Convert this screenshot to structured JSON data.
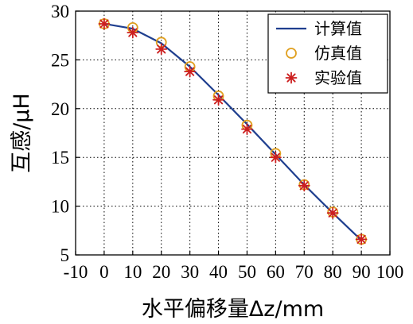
{
  "chart_data": {
    "type": "line",
    "xlabel": "水平偏移量Δz/mm",
    "ylabel": "互感/μH",
    "xlim": [
      -10,
      100
    ],
    "ylim": [
      5,
      30
    ],
    "xticks": [
      -10,
      0,
      10,
      20,
      30,
      40,
      50,
      60,
      70,
      80,
      90,
      100
    ],
    "yticks": [
      5,
      10,
      15,
      20,
      25,
      30
    ],
    "grid": "dotted",
    "legend_position": "top-right",
    "series": [
      {
        "name": "计算值",
        "style": "line",
        "color": "#1f3f8f",
        "x": [
          0,
          10,
          20,
          30,
          40,
          50,
          60,
          70,
          80,
          90
        ],
        "y": [
          28.7,
          28.2,
          26.7,
          24.3,
          21.4,
          18.4,
          15.3,
          12.2,
          9.3,
          6.5
        ]
      },
      {
        "name": "仿真值",
        "style": "circle-marker",
        "color": "#e0a020",
        "x": [
          0,
          10,
          20,
          30,
          40,
          50,
          60,
          70,
          80,
          90
        ],
        "y": [
          28.7,
          28.3,
          26.8,
          24.3,
          21.3,
          18.3,
          15.4,
          12.2,
          9.4,
          6.6
        ]
      },
      {
        "name": "实验值",
        "style": "asterisk-marker",
        "color": "#cc1f1f",
        "x": [
          0,
          10,
          20,
          30,
          40,
          50,
          60,
          70,
          80,
          90
        ],
        "y": [
          28.7,
          27.8,
          26.1,
          23.8,
          20.9,
          17.9,
          15.0,
          12.1,
          9.3,
          6.6
        ]
      }
    ]
  }
}
